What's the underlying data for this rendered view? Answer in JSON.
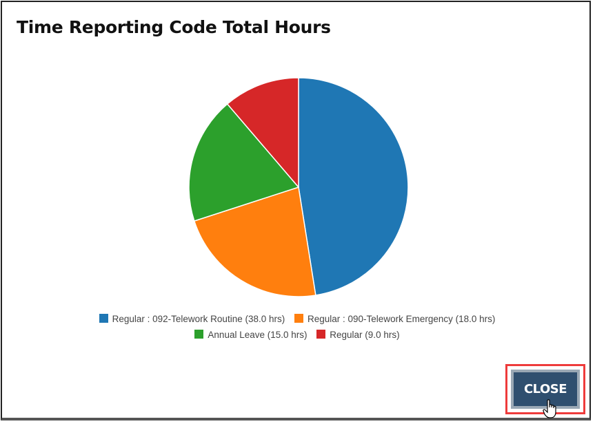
{
  "dialog": {
    "title": "Time Reporting Code Total Hours",
    "close_label": "CLOSE"
  },
  "legend": {
    "items": [
      {
        "label": "Regular : 092-Telework Routine (38.0 hrs)",
        "color": "#1f77b4"
      },
      {
        "label": "Regular : 090-Telework Emergency (18.0 hrs)",
        "color": "#ff7f0e"
      },
      {
        "label": "Annual Leave (15.0 hrs)",
        "color": "#2ca02c"
      },
      {
        "label": "Regular (9.0 hrs)",
        "color": "#d62728"
      }
    ]
  },
  "chart_data": {
    "type": "pie",
    "title": "Time Reporting Code Total Hours",
    "categories": [
      "Regular : 092-Telework Routine",
      "Regular : 090-Telework Emergency",
      "Annual Leave",
      "Regular"
    ],
    "values": [
      38.0,
      18.0,
      15.0,
      9.0
    ],
    "unit": "hrs",
    "colors": [
      "#1f77b4",
      "#ff7f0e",
      "#2ca02c",
      "#d62728"
    ],
    "legend_position": "bottom",
    "start_angle": "top, clockwise"
  }
}
